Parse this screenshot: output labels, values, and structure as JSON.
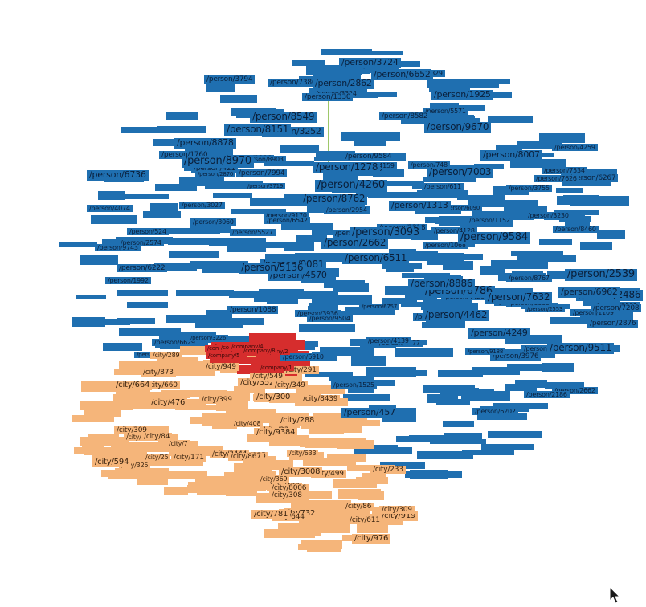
{
  "colors": {
    "person": "#1f6fb0",
    "city": "#f5b57a",
    "company": "#d62d2d",
    "edge": "#9ec86a"
  },
  "nodes": {
    "person_large": [
      "/person/4570",
      "/person/2486",
      "/person/457",
      "/person/9670",
      "/person/6786",
      "/person/1313",
      "/person/6652",
      "/person/8549",
      "/person/3724",
      "/person/3252",
      "/person/7003",
      "/person/7632",
      "/person/8151",
      "/person/4249",
      "/person/2662",
      "/person/9081",
      "/person/9584",
      "/person/6511",
      "/person/2539",
      "/person/6962",
      "/person/8762",
      "/person/8878",
      "/person/1278",
      "/person/9511",
      "/person/2862",
      "/person/4462",
      "/person/1925",
      "/person/8007",
      "/person/8886",
      "/person/8970",
      "/person/3093",
      "/person/4260",
      "/person/6736",
      "/person/5136"
    ],
    "person_medium": [
      "/person/3060",
      "/person/4477",
      "/person/3794",
      "/person/2318",
      "/person/2218",
      "/person/7994",
      "/person/6090",
      "/person/6222",
      "/person/1109",
      "/person/2876",
      "/person/8367",
      "/person/6757",
      "/person/1152",
      "/person/4259",
      "/person/3719",
      "/person/3581",
      "/person/524",
      "/person/1525",
      "/person/8767",
      "/person/421",
      "/person/3324",
      "/person/8903",
      "/person/9743",
      "/person/3499",
      "/person/7208",
      "/person/2870",
      "/person/6256",
      "/person/1088",
      "/person/3230",
      "/person/6910",
      "/person/6267",
      "/person/2574",
      "/person/1330",
      "/person/6629",
      "/person/3976",
      "/person/4074",
      "/person/748",
      "/person/3027",
      "/person/2829",
      "/person/2662",
      "/person/4139",
      "/person/6032",
      "/person/7848",
      "/person/2186",
      "/person/3086",
      "/person/9170",
      "/person/7386",
      "/person/7406",
      "/person/7626",
      "/person/4159",
      "/person/6660",
      "/person/1760",
      "/person/2553",
      "/person/3926",
      "/person/2954",
      "/person/7534",
      "/person/3226",
      "/person/4128",
      "/person/3936",
      "/person/611",
      "/person/1068",
      "/person/8460",
      "/person/9504",
      "/person/9584",
      "/person/2326",
      "/person/1992",
      "/person/3755",
      "/person/6202",
      "/person/5571",
      "/person/9188",
      "/person/6542",
      "/person/8582",
      "/person/5527",
      "/person/4426"
    ],
    "city": [
      "/city/325",
      "/city/476",
      "/city/352",
      "/city/499",
      "/city/976",
      "/city/3008",
      "/city/919",
      "/city/25",
      "/city/291",
      "/city/309",
      "/city/288",
      "/city/125",
      "/city/732",
      "/city/594",
      "/city/660",
      "/city/664",
      "/city/86",
      "/city/300",
      "/city/633",
      "/city/3444",
      "/city/611",
      "/city/644",
      "/city/949",
      "/city/349",
      "/city/499",
      "/city/233",
      "/city/8006",
      "/city/873",
      "/city/171",
      "/city/23",
      "/city/793",
      "/city/781",
      "/city/369",
      "/city/309",
      "/city/289",
      "/city/399",
      "/city/9384",
      "/city/84",
      "/city/308",
      "/city/549",
      "/city/7",
      "/city/8439",
      "/city/867",
      "/city/408"
    ],
    "company": [
      "/company/3",
      "/company/7",
      "/company/1",
      "/company/5",
      "/company/2",
      "/company/9",
      "/company/4",
      "/company/8"
    ]
  }
}
